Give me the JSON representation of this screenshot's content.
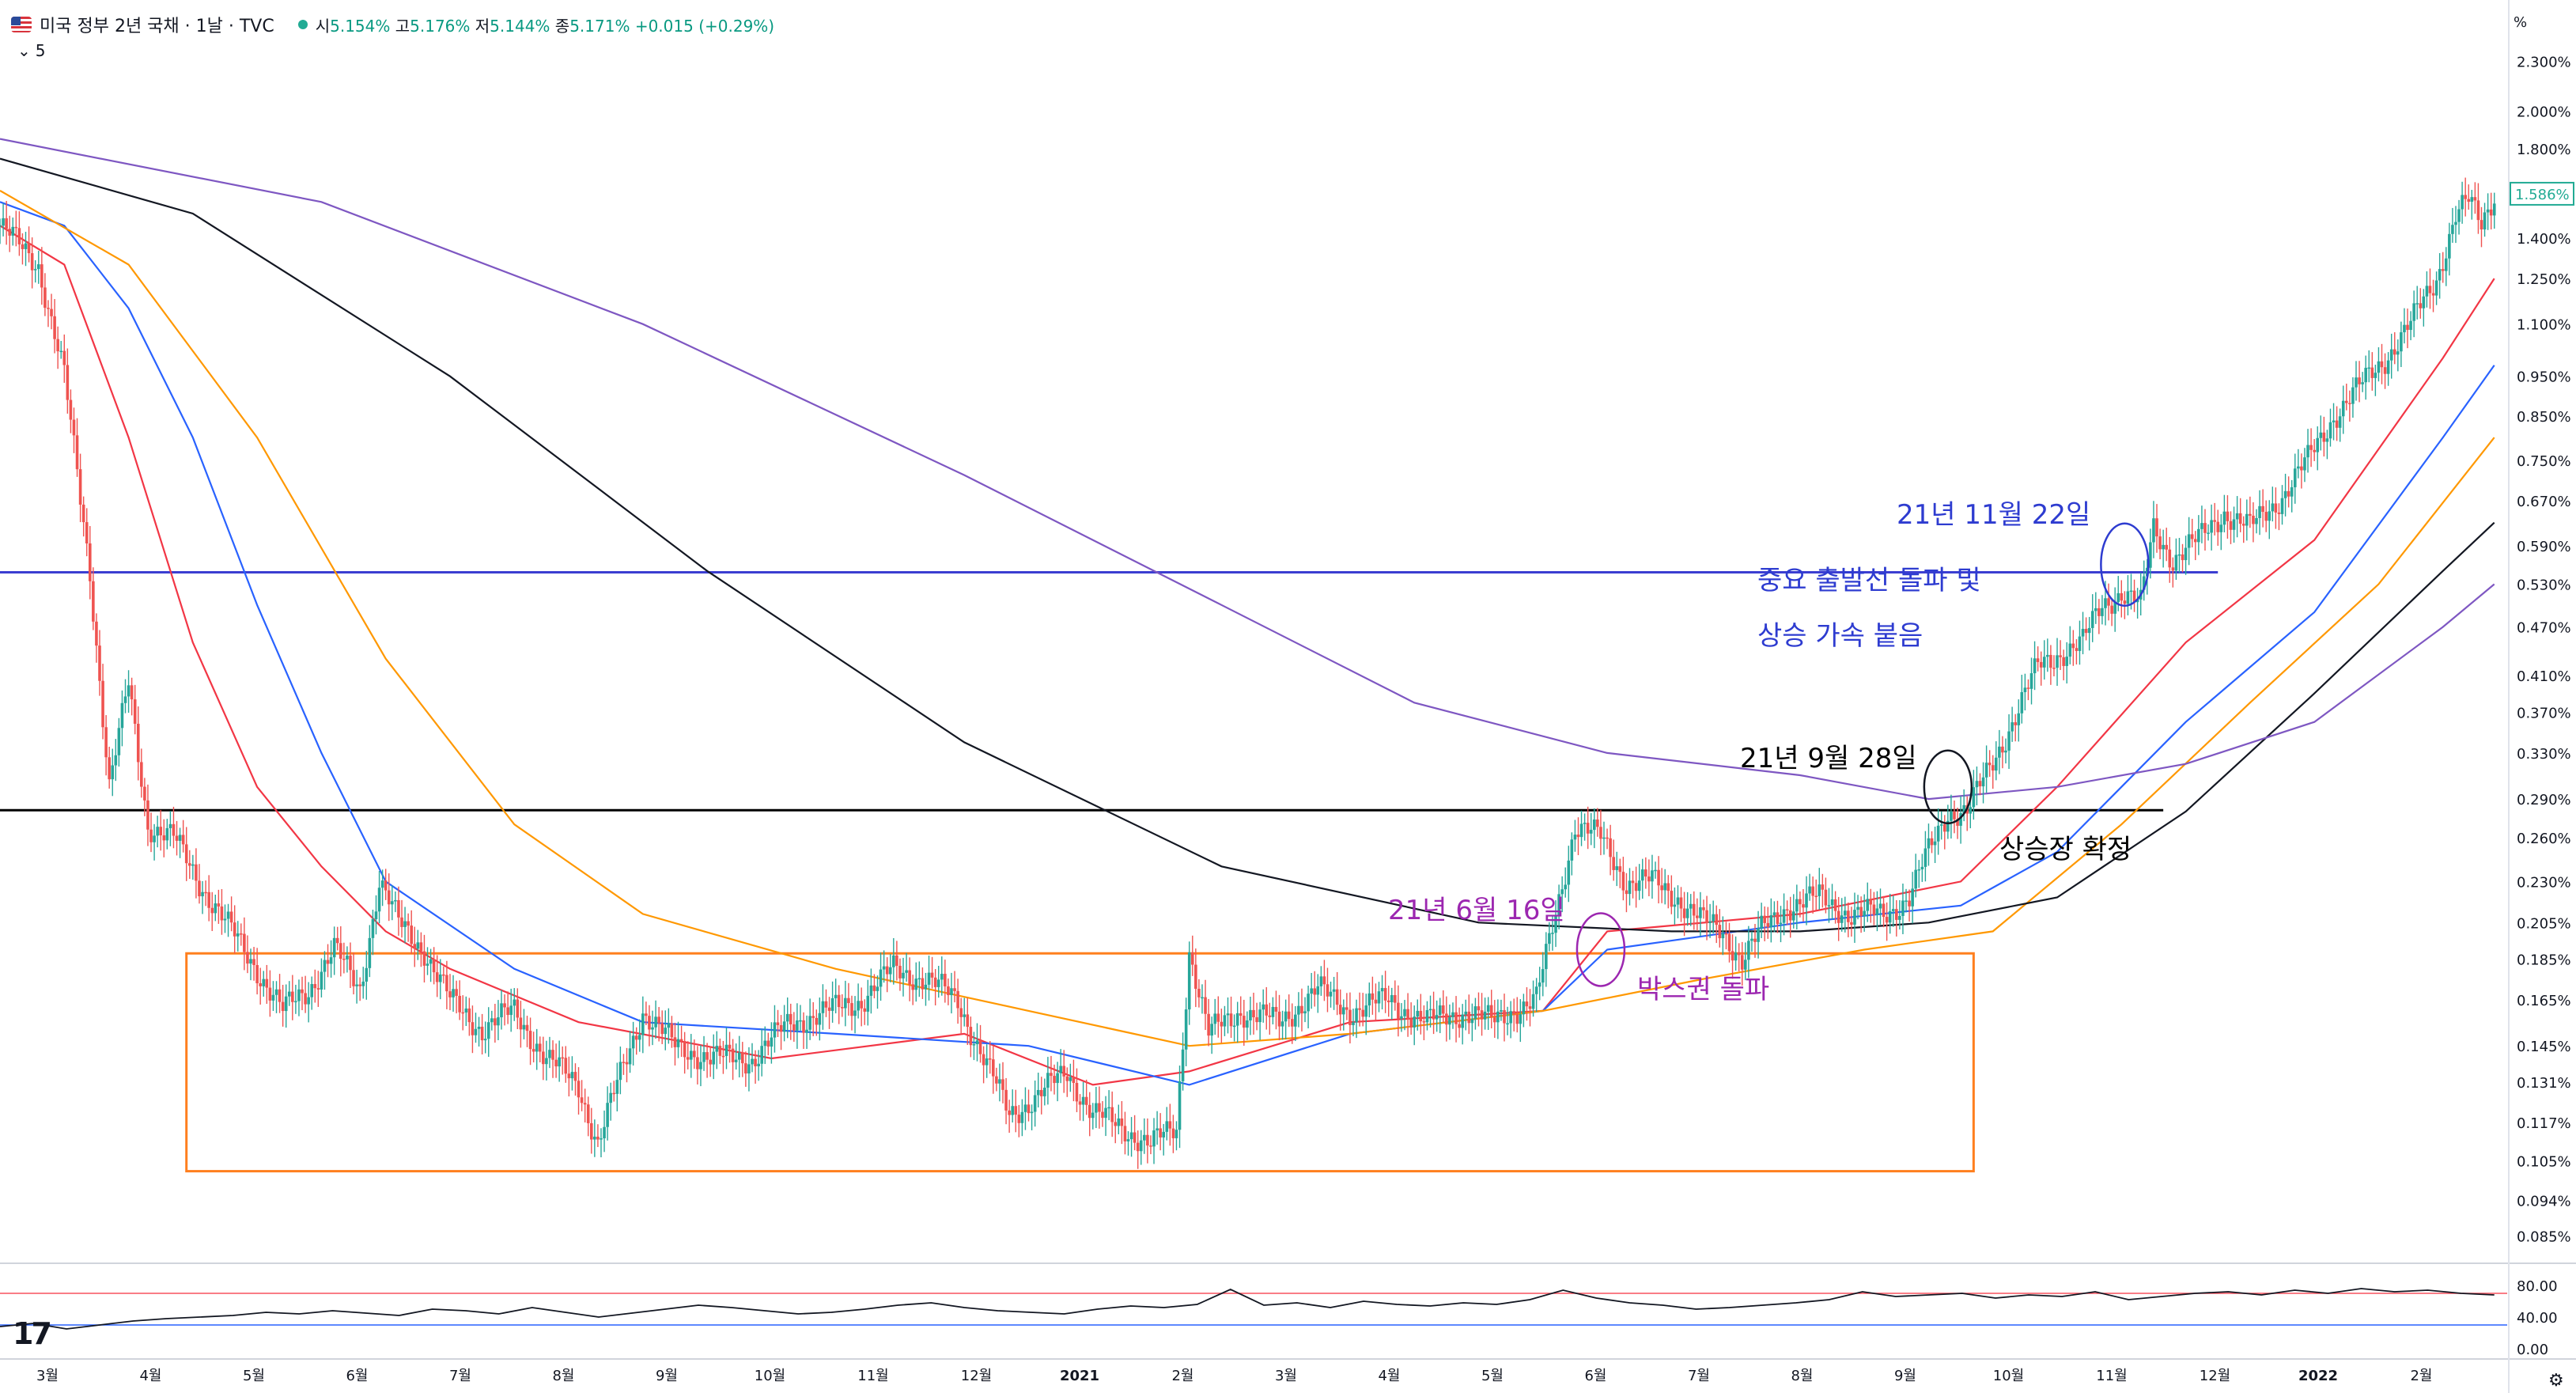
{
  "header": {
    "symbol_title": "미국 정부 2년 국채 · 1날 · TVC",
    "ohlc": [
      {
        "label": "시",
        "value": "5.154%"
      },
      {
        "label": "고",
        "value": "5.176%"
      },
      {
        "label": "저",
        "value": "5.144%"
      },
      {
        "label": "종",
        "value": "5.171%"
      }
    ],
    "change": "+0.015 (+0.29%)",
    "collapse_label": "5",
    "unit_label": "%"
  },
  "colors": {
    "up": "#26a69a",
    "down": "#ef5350",
    "ma_red": "#f23645",
    "ma_blue": "#2962ff",
    "ma_orange": "#ff9800",
    "ma_black": "#131722",
    "ma_purple": "#7e57c2",
    "hline_blue": "#3b3ed1",
    "hline_black": "#000000",
    "box_orange": "#ff7f1e",
    "annotation_purple": "#9c27b0",
    "annotation_blue": "#2e3cd0",
    "annotation_black": "#000000",
    "price_badge": "#22ab94"
  },
  "chart_data": {
    "type": "line",
    "instrument": "미국 정부 2년 국채",
    "x_ticks": [
      "3월",
      "4월",
      "5월",
      "6월",
      "7월",
      "8월",
      "9월",
      "10월",
      "11월",
      "12월",
      "2021",
      "2월",
      "3월",
      "4월",
      "5월",
      "6월",
      "7월",
      "8월",
      "9월",
      "10월",
      "11월",
      "12월",
      "2022",
      "2월"
    ],
    "y_ticks": [
      "2.300%",
      "2.000%",
      "1.800%",
      "1.400%",
      "1.250%",
      "1.100%",
      "0.950%",
      "0.850%",
      "0.750%",
      "0.670%",
      "0.590%",
      "0.530%",
      "0.470%",
      "0.410%",
      "0.370%",
      "0.330%",
      "0.290%",
      "0.260%",
      "0.230%",
      "0.205%",
      "0.185%",
      "0.165%",
      "0.145%",
      "0.131%",
      "0.117%",
      "0.105%",
      "0.094%",
      "0.085%"
    ],
    "y_scale": "log",
    "ylim": [
      0.08,
      2.5
    ],
    "last_price": "1.586%",
    "price_path": [
      [
        0,
        1.45
      ],
      [
        12,
        1.3
      ],
      [
        20,
        0.95
      ],
      [
        28,
        0.55
      ],
      [
        34,
        0.3
      ],
      [
        40,
        0.4
      ],
      [
        46,
        0.27
      ],
      [
        54,
        0.26
      ],
      [
        62,
        0.23
      ],
      [
        72,
        0.2
      ],
      [
        80,
        0.18
      ],
      [
        88,
        0.16
      ],
      [
        96,
        0.17
      ],
      [
        104,
        0.19
      ],
      [
        112,
        0.17
      ],
      [
        118,
        0.23
      ],
      [
        124,
        0.205
      ],
      [
        132,
        0.19
      ],
      [
        140,
        0.165
      ],
      [
        150,
        0.152
      ],
      [
        160,
        0.16
      ],
      [
        170,
        0.14
      ],
      [
        180,
        0.13
      ],
      [
        186,
        0.11
      ],
      [
        192,
        0.13
      ],
      [
        200,
        0.16
      ],
      [
        210,
        0.145
      ],
      [
        222,
        0.14
      ],
      [
        234,
        0.14
      ],
      [
        246,
        0.155
      ],
      [
        258,
        0.16
      ],
      [
        268,
        0.165
      ],
      [
        278,
        0.18
      ],
      [
        288,
        0.175
      ],
      [
        298,
        0.165
      ],
      [
        306,
        0.14
      ],
      [
        314,
        0.12
      ],
      [
        322,
        0.125
      ],
      [
        332,
        0.135
      ],
      [
        340,
        0.12
      ],
      [
        350,
        0.115
      ],
      [
        358,
        0.11
      ],
      [
        366,
        0.115
      ],
      [
        370,
        0.19
      ],
      [
        376,
        0.15
      ],
      [
        386,
        0.16
      ],
      [
        398,
        0.155
      ],
      [
        410,
        0.17
      ],
      [
        420,
        0.16
      ],
      [
        432,
        0.165
      ],
      [
        444,
        0.155
      ],
      [
        456,
        0.16
      ],
      [
        464,
        0.155
      ],
      [
        470,
        0.16
      ],
      [
        478,
        0.165
      ],
      [
        484,
        0.21
      ],
      [
        490,
        0.27
      ],
      [
        498,
        0.26
      ],
      [
        506,
        0.23
      ],
      [
        514,
        0.23
      ],
      [
        522,
        0.22
      ],
      [
        530,
        0.205
      ],
      [
        536,
        0.2
      ],
      [
        542,
        0.185
      ],
      [
        548,
        0.2
      ],
      [
        556,
        0.215
      ],
      [
        566,
        0.22
      ],
      [
        576,
        0.21
      ],
      [
        586,
        0.21
      ],
      [
        594,
        0.22
      ],
      [
        600,
        0.25
      ],
      [
        606,
        0.28
      ],
      [
        612,
        0.28
      ],
      [
        618,
        0.31
      ],
      [
        626,
        0.36
      ],
      [
        634,
        0.42
      ],
      [
        642,
        0.44
      ],
      [
        648,
        0.45
      ],
      [
        654,
        0.5
      ],
      [
        660,
        0.52
      ],
      [
        666,
        0.5
      ],
      [
        670,
        0.62
      ],
      [
        676,
        0.57
      ],
      [
        684,
        0.6
      ],
      [
        692,
        0.65
      ],
      [
        700,
        0.62
      ],
      [
        710,
        0.68
      ],
      [
        718,
        0.75
      ],
      [
        726,
        0.85
      ],
      [
        734,
        0.92
      ],
      [
        742,
        1.0
      ],
      [
        750,
        1.1
      ],
      [
        758,
        1.25
      ],
      [
        764,
        1.5
      ],
      [
        768,
        1.55
      ],
      [
        772,
        1.45
      ],
      [
        776,
        1.586
      ]
    ],
    "moving_averages": [
      {
        "color_key": "ma_red",
        "path": [
          [
            0,
            1.45
          ],
          [
            20,
            1.3
          ],
          [
            40,
            0.8
          ],
          [
            60,
            0.45
          ],
          [
            80,
            0.3
          ],
          [
            100,
            0.24
          ],
          [
            120,
            0.2
          ],
          [
            140,
            0.18
          ],
          [
            180,
            0.155
          ],
          [
            240,
            0.14
          ],
          [
            300,
            0.15
          ],
          [
            340,
            0.13
          ],
          [
            370,
            0.135
          ],
          [
            420,
            0.155
          ],
          [
            480,
            0.16
          ],
          [
            500,
            0.2
          ],
          [
            560,
            0.21
          ],
          [
            610,
            0.23
          ],
          [
            640,
            0.3
          ],
          [
            680,
            0.45
          ],
          [
            720,
            0.6
          ],
          [
            760,
            1.0
          ],
          [
            776,
            1.25
          ]
        ]
      },
      {
        "color_key": "ma_blue",
        "path": [
          [
            0,
            1.55
          ],
          [
            20,
            1.45
          ],
          [
            40,
            1.15
          ],
          [
            60,
            0.8
          ],
          [
            80,
            0.5
          ],
          [
            100,
            0.33
          ],
          [
            120,
            0.23
          ],
          [
            160,
            0.18
          ],
          [
            200,
            0.155
          ],
          [
            260,
            0.15
          ],
          [
            320,
            0.145
          ],
          [
            370,
            0.13
          ],
          [
            420,
            0.15
          ],
          [
            480,
            0.16
          ],
          [
            500,
            0.19
          ],
          [
            560,
            0.205
          ],
          [
            610,
            0.215
          ],
          [
            640,
            0.25
          ],
          [
            680,
            0.36
          ],
          [
            720,
            0.49
          ],
          [
            760,
            0.8
          ],
          [
            776,
            0.98
          ]
        ]
      },
      {
        "color_key": "ma_orange",
        "path": [
          [
            0,
            1.6
          ],
          [
            40,
            1.3
          ],
          [
            80,
            0.8
          ],
          [
            120,
            0.43
          ],
          [
            160,
            0.27
          ],
          [
            200,
            0.21
          ],
          [
            260,
            0.18
          ],
          [
            320,
            0.16
          ],
          [
            370,
            0.145
          ],
          [
            420,
            0.15
          ],
          [
            480,
            0.16
          ],
          [
            530,
            0.175
          ],
          [
            580,
            0.19
          ],
          [
            620,
            0.2
          ],
          [
            660,
            0.27
          ],
          [
            700,
            0.38
          ],
          [
            740,
            0.53
          ],
          [
            776,
            0.8
          ]
        ]
      },
      {
        "color_key": "ma_black",
        "path": [
          [
            0,
            1.75
          ],
          [
            60,
            1.5
          ],
          [
            140,
            0.95
          ],
          [
            220,
            0.55
          ],
          [
            300,
            0.34
          ],
          [
            380,
            0.24
          ],
          [
            460,
            0.205
          ],
          [
            520,
            0.2
          ],
          [
            560,
            0.2
          ],
          [
            600,
            0.205
          ],
          [
            640,
            0.22
          ],
          [
            680,
            0.28
          ],
          [
            720,
            0.39
          ],
          [
            760,
            0.55
          ],
          [
            776,
            0.63
          ]
        ]
      },
      {
        "color_key": "ma_purple",
        "path": [
          [
            0,
            1.85
          ],
          [
            100,
            1.55
          ],
          [
            200,
            1.1
          ],
          [
            300,
            0.72
          ],
          [
            380,
            0.5
          ],
          [
            440,
            0.38
          ],
          [
            500,
            0.33
          ],
          [
            560,
            0.31
          ],
          [
            600,
            0.29
          ],
          [
            640,
            0.3
          ],
          [
            680,
            0.32
          ],
          [
            720,
            0.36
          ],
          [
            760,
            0.47
          ],
          [
            776,
            0.53
          ]
        ]
      }
    ],
    "annotations": {
      "box": {
        "from_x": 58,
        "to_x": 614,
        "low": 0.102,
        "high": 0.188,
        "label": "박스권 돌파"
      },
      "hline_blue": {
        "y": 0.548,
        "from_x": 0,
        "to_x": 690
      },
      "hline_black": {
        "y": 0.281,
        "from_x": 0,
        "to_x": 673
      },
      "circles": [
        {
          "x": 498,
          "y": 0.19,
          "color_key": "annotation_purple"
        },
        {
          "x": 606,
          "y": 0.3,
          "color_key": "ma_black"
        },
        {
          "x": 661,
          "y": 0.56,
          "color_key": "annotation_blue"
        }
      ],
      "labels": [
        {
          "text": "21년 6월 16일",
          "color_key": "annotation_purple"
        },
        {
          "text": "21년 9월 28일",
          "color_key": "annotation_black"
        },
        {
          "text": "상승장 확정",
          "color_key": "annotation_black"
        },
        {
          "text": "21년 11월 22일",
          "color_key": "annotation_blue"
        },
        {
          "text": "중요 출발선 돌파 및",
          "color_key": "annotation_blue"
        },
        {
          "text": "상승 가속 붙음",
          "color_key": "annotation_blue"
        }
      ]
    },
    "rsi": {
      "y_ticks": [
        "80.00",
        "40.00",
        "0.00"
      ],
      "upper": 70,
      "lower": 30,
      "ylim": [
        0,
        100
      ],
      "values": [
        28,
        32,
        25,
        30,
        35,
        38,
        40,
        42,
        46,
        44,
        48,
        45,
        42,
        50,
        48,
        44,
        52,
        46,
        40,
        45,
        50,
        55,
        52,
        48,
        44,
        46,
        50,
        55,
        58,
        52,
        48,
        46,
        44,
        50,
        54,
        52,
        56,
        75,
        55,
        58,
        52,
        60,
        56,
        54,
        58,
        56,
        62,
        74,
        64,
        58,
        55,
        50,
        52,
        55,
        58,
        62,
        72,
        66,
        68,
        70,
        64,
        68,
        66,
        72,
        62,
        66,
        70,
        72,
        68,
        74,
        70,
        76,
        72,
        74,
        70,
        68
      ]
    }
  }
}
